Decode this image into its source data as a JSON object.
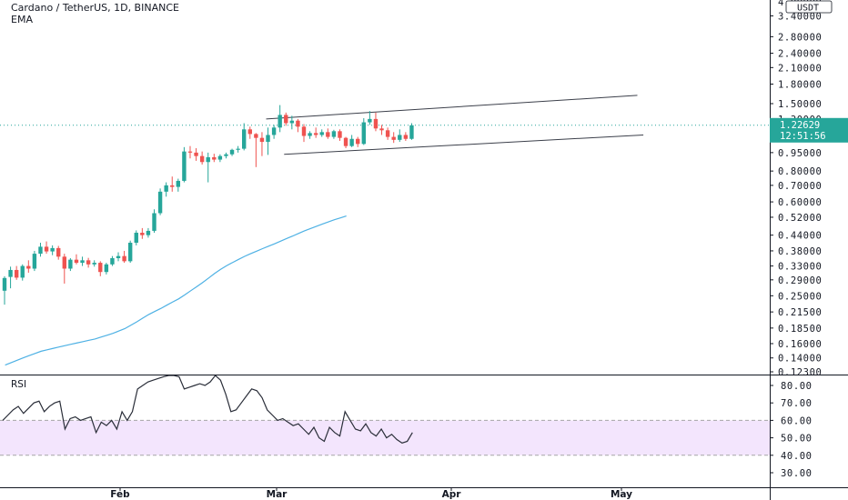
{
  "header": {
    "title": "Cardano / TetherUS, 1D, BINANCE",
    "indicator": "EMA"
  },
  "colors": {
    "up": "#26a69a",
    "down": "#ef5350",
    "ema": "#4eb1e4",
    "rsi": "#2a2e39",
    "rsi_band": "#f3e5fd",
    "price_line": "#26a69a",
    "grid": "#b2b5be"
  },
  "price_badge": {
    "price": "1.22629",
    "countdown": "12:51:56"
  },
  "price_axis": {
    "unit": "USDT",
    "top_label_partial": "4.00000",
    "labels": [
      "3.40000",
      "2.80000",
      "2.40000",
      "2.10000",
      "1.80000",
      "1.50000",
      "1.30000",
      "1.10000",
      "0.95000",
      "0.80000",
      "0.70000",
      "0.60000",
      "0.52000",
      "0.44000",
      "0.38000",
      "0.33000",
      "0.29000",
      "0.25000",
      "0.21500",
      "0.18500",
      "0.16000",
      "0.14000",
      "0.12300"
    ]
  },
  "rsi_panel": {
    "title": "RSI",
    "labels": [
      "80.00",
      "70.00",
      "60.00",
      "50.00",
      "40.00",
      "30.00"
    ]
  },
  "time_axis": {
    "labels": [
      "Feb",
      "Mar",
      "Apr",
      "May"
    ]
  },
  "chart_data": {
    "type": "candlestick",
    "title": "Cardano / TetherUS, 1D, BINANCE",
    "y_scale": "log",
    "ylim": [
      0.123,
      4.0
    ],
    "candles": [
      {
        "o": 0.262,
        "h": 0.3,
        "l": 0.23,
        "c": 0.295
      },
      {
        "o": 0.298,
        "h": 0.328,
        "l": 0.268,
        "c": 0.318
      },
      {
        "o": 0.318,
        "h": 0.33,
        "l": 0.29,
        "c": 0.296
      },
      {
        "o": 0.296,
        "h": 0.335,
        "l": 0.288,
        "c": 0.33
      },
      {
        "o": 0.33,
        "h": 0.348,
        "l": 0.31,
        "c": 0.322
      },
      {
        "o": 0.322,
        "h": 0.38,
        "l": 0.315,
        "c": 0.37
      },
      {
        "o": 0.37,
        "h": 0.41,
        "l": 0.36,
        "c": 0.395
      },
      {
        "o": 0.395,
        "h": 0.415,
        "l": 0.37,
        "c": 0.378
      },
      {
        "o": 0.378,
        "h": 0.4,
        "l": 0.365,
        "c": 0.39
      },
      {
        "o": 0.39,
        "h": 0.398,
        "l": 0.35,
        "c": 0.36
      },
      {
        "o": 0.36,
        "h": 0.37,
        "l": 0.28,
        "c": 0.322
      },
      {
        "o": 0.322,
        "h": 0.355,
        "l": 0.315,
        "c": 0.35
      },
      {
        "o": 0.35,
        "h": 0.368,
        "l": 0.335,
        "c": 0.34
      },
      {
        "o": 0.34,
        "h": 0.36,
        "l": 0.33,
        "c": 0.348
      },
      {
        "o": 0.348,
        "h": 0.356,
        "l": 0.325,
        "c": 0.335
      },
      {
        "o": 0.335,
        "h": 0.348,
        "l": 0.328,
        "c": 0.34
      },
      {
        "o": 0.34,
        "h": 0.345,
        "l": 0.3,
        "c": 0.312
      },
      {
        "o": 0.312,
        "h": 0.34,
        "l": 0.305,
        "c": 0.335
      },
      {
        "o": 0.335,
        "h": 0.362,
        "l": 0.33,
        "c": 0.355
      },
      {
        "o": 0.355,
        "h": 0.375,
        "l": 0.345,
        "c": 0.362
      },
      {
        "o": 0.362,
        "h": 0.38,
        "l": 0.34,
        "c": 0.345
      },
      {
        "o": 0.345,
        "h": 0.418,
        "l": 0.34,
        "c": 0.41
      },
      {
        "o": 0.41,
        "h": 0.46,
        "l": 0.4,
        "c": 0.45
      },
      {
        "o": 0.45,
        "h": 0.47,
        "l": 0.425,
        "c": 0.44
      },
      {
        "o": 0.44,
        "h": 0.47,
        "l": 0.43,
        "c": 0.458
      },
      {
        "o": 0.458,
        "h": 0.56,
        "l": 0.45,
        "c": 0.54
      },
      {
        "o": 0.54,
        "h": 0.68,
        "l": 0.53,
        "c": 0.66
      },
      {
        "o": 0.66,
        "h": 0.72,
        "l": 0.63,
        "c": 0.7
      },
      {
        "o": 0.7,
        "h": 0.76,
        "l": 0.66,
        "c": 0.69
      },
      {
        "o": 0.69,
        "h": 0.745,
        "l": 0.66,
        "c": 0.73
      },
      {
        "o": 0.73,
        "h": 1.0,
        "l": 0.72,
        "c": 0.96
      },
      {
        "o": 0.96,
        "h": 1.01,
        "l": 0.9,
        "c": 0.95
      },
      {
        "o": 0.95,
        "h": 0.99,
        "l": 0.88,
        "c": 0.92
      },
      {
        "o": 0.92,
        "h": 0.96,
        "l": 0.85,
        "c": 0.87
      },
      {
        "o": 0.87,
        "h": 0.95,
        "l": 0.72,
        "c": 0.91
      },
      {
        "o": 0.91,
        "h": 0.94,
        "l": 0.87,
        "c": 0.89
      },
      {
        "o": 0.89,
        "h": 0.935,
        "l": 0.87,
        "c": 0.92
      },
      {
        "o": 0.92,
        "h": 0.95,
        "l": 0.9,
        "c": 0.935
      },
      {
        "o": 0.935,
        "h": 0.985,
        "l": 0.92,
        "c": 0.975
      },
      {
        "o": 0.975,
        "h": 1.01,
        "l": 0.95,
        "c": 0.985
      },
      {
        "o": 0.985,
        "h": 1.25,
        "l": 0.97,
        "c": 1.18
      },
      {
        "o": 1.18,
        "h": 1.21,
        "l": 1.08,
        "c": 1.13
      },
      {
        "o": 1.13,
        "h": 1.14,
        "l": 0.83,
        "c": 1.09
      },
      {
        "o": 1.09,
        "h": 1.15,
        "l": 0.92,
        "c": 1.05
      },
      {
        "o": 1.05,
        "h": 1.2,
        "l": 0.93,
        "c": 1.12
      },
      {
        "o": 1.12,
        "h": 1.23,
        "l": 1.08,
        "c": 1.2
      },
      {
        "o": 1.2,
        "h": 1.48,
        "l": 1.15,
        "c": 1.35
      },
      {
        "o": 1.35,
        "h": 1.38,
        "l": 1.22,
        "c": 1.25
      },
      {
        "o": 1.25,
        "h": 1.34,
        "l": 1.18,
        "c": 1.28
      },
      {
        "o": 1.28,
        "h": 1.3,
        "l": 1.15,
        "c": 1.21
      },
      {
        "o": 1.21,
        "h": 1.24,
        "l": 1.05,
        "c": 1.11
      },
      {
        "o": 1.11,
        "h": 1.16,
        "l": 1.08,
        "c": 1.14
      },
      {
        "o": 1.14,
        "h": 1.2,
        "l": 1.09,
        "c": 1.12
      },
      {
        "o": 1.12,
        "h": 1.18,
        "l": 1.1,
        "c": 1.15
      },
      {
        "o": 1.15,
        "h": 1.19,
        "l": 1.08,
        "c": 1.1
      },
      {
        "o": 1.1,
        "h": 1.175,
        "l": 1.08,
        "c": 1.16
      },
      {
        "o": 1.16,
        "h": 1.18,
        "l": 1.06,
        "c": 1.09
      },
      {
        "o": 1.09,
        "h": 1.1,
        "l": 0.99,
        "c": 1.01
      },
      {
        "o": 1.01,
        "h": 1.12,
        "l": 1.0,
        "c": 1.08
      },
      {
        "o": 1.08,
        "h": 1.1,
        "l": 1.0,
        "c": 1.03
      },
      {
        "o": 1.03,
        "h": 1.31,
        "l": 1.02,
        "c": 1.26
      },
      {
        "o": 1.26,
        "h": 1.4,
        "l": 1.23,
        "c": 1.3
      },
      {
        "o": 1.3,
        "h": 1.38,
        "l": 1.16,
        "c": 1.19
      },
      {
        "o": 1.19,
        "h": 1.23,
        "l": 1.12,
        "c": 1.17
      },
      {
        "o": 1.17,
        "h": 1.2,
        "l": 1.07,
        "c": 1.1
      },
      {
        "o": 1.1,
        "h": 1.15,
        "l": 1.04,
        "c": 1.07
      },
      {
        "o": 1.07,
        "h": 1.18,
        "l": 1.05,
        "c": 1.12
      },
      {
        "o": 1.12,
        "h": 1.15,
        "l": 1.06,
        "c": 1.08
      },
      {
        "o": 1.08,
        "h": 1.25,
        "l": 1.07,
        "c": 1.226
      }
    ],
    "ema": [
      0.131,
      0.134,
      0.137,
      0.14,
      0.143,
      0.146,
      0.149,
      0.151,
      0.153,
      0.155,
      0.157,
      0.159,
      0.161,
      0.163,
      0.165,
      0.167,
      0.17,
      0.173,
      0.176,
      0.18,
      0.184,
      0.19,
      0.196,
      0.203,
      0.21,
      0.216,
      0.222,
      0.229,
      0.236,
      0.243,
      0.252,
      0.262,
      0.272,
      0.283,
      0.295,
      0.308,
      0.32,
      0.331,
      0.341,
      0.351,
      0.361,
      0.37,
      0.379,
      0.388,
      0.397,
      0.406,
      0.416,
      0.426,
      0.436,
      0.447,
      0.458,
      0.468,
      0.478,
      0.488,
      0.498,
      0.508,
      0.517,
      0.526
    ],
    "channel": {
      "upper": [
        {
          "x": 44,
          "y": 1.3
        },
        {
          "x": 106,
          "y": 1.62
        }
      ],
      "lower": [
        {
          "x": 47,
          "y": 0.935
        },
        {
          "x": 107,
          "y": 1.12
        }
      ]
    },
    "rsi": [
      60,
      63,
      66,
      68,
      64,
      67,
      70,
      71,
      65,
      68,
      70,
      71,
      55,
      61,
      62,
      60,
      61,
      62,
      53,
      59,
      57,
      60,
      55,
      65,
      60,
      65,
      78,
      80,
      82,
      83,
      84,
      85,
      86,
      87,
      85,
      78,
      79,
      80,
      81,
      80,
      82,
      86,
      83,
      75,
      65,
      66,
      70,
      74,
      78,
      77,
      73,
      66,
      63,
      60,
      61,
      59,
      57,
      58,
      55,
      52,
      56,
      50,
      48,
      56,
      53,
      51,
      65,
      60,
      55,
      54,
      58,
      53,
      51,
      55,
      50,
      52,
      49,
      47,
      48,
      53
    ],
    "rsi_ylim": [
      23,
      85
    ]
  }
}
